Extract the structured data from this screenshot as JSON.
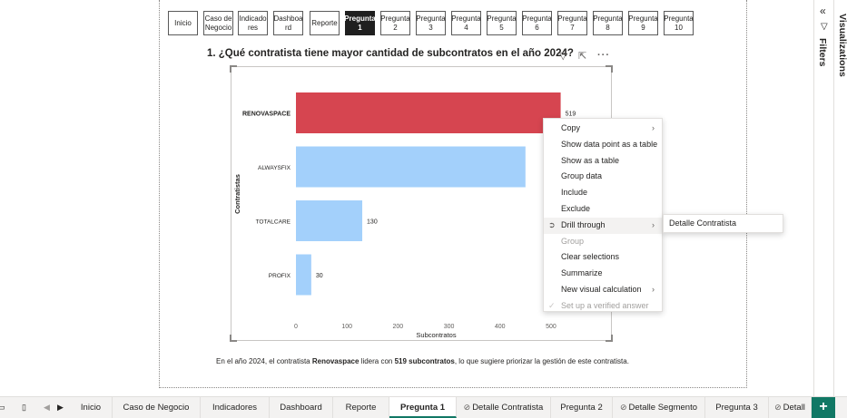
{
  "nav": {
    "buttons": [
      "Inicio",
      "Caso de Negocio",
      "Indicado res",
      "Dashboa rd",
      "Reporte",
      "Pregunta 1",
      "Pregunta 2",
      "Pregunta 3",
      "Pregunta 4",
      "Pregunta 5",
      "Pregunta 6",
      "Pregunta 7",
      "Pregunta 8",
      "Pregunta 9",
      "Pregunta 10"
    ],
    "active_index": 5
  },
  "visual": {
    "title": "1. ¿Qué contratista tiene mayor cantidad de subcontratos en el año 2024?",
    "icons": [
      "filter-icon",
      "focus-mode-icon",
      "more-options-icon"
    ]
  },
  "chart_data": {
    "type": "bar",
    "orientation": "horizontal",
    "categories": [
      "RENOVASPACE",
      "ALWAYSFIX",
      "TOTALCARE",
      "PROFIX"
    ],
    "values": [
      519,
      450,
      130,
      30
    ],
    "data_labels": [
      "519",
      "",
      "130",
      "30"
    ],
    "colors": [
      "#d64550",
      "#a3d0fb",
      "#a3d0fb",
      "#a3d0fb"
    ],
    "xlabel": "Subcontratos",
    "ylabel": "Contratistas",
    "xlim": [
      0,
      550
    ],
    "xticks": [
      0,
      100,
      200,
      300,
      400,
      500
    ],
    "grid": false
  },
  "caption": {
    "before": "En el año 2024, el contratista ",
    "bold1": "Renovaspace",
    "middle": " lidera con ",
    "bold2": "519 subcontratos",
    "after": ", lo que sugiere priorizar la gestión de este contratista."
  },
  "context_menu": {
    "items": [
      {
        "label": "Copy",
        "submenu": true,
        "disabled": false
      },
      {
        "label": "Show data point as a table",
        "submenu": false,
        "disabled": false
      },
      {
        "label": "Show as a table",
        "submenu": false,
        "disabled": false
      },
      {
        "label": "Group data",
        "submenu": false,
        "disabled": false
      },
      {
        "label": "Include",
        "submenu": false,
        "disabled": false
      },
      {
        "label": "Exclude",
        "submenu": false,
        "disabled": false
      },
      {
        "label": "Drill through",
        "submenu": true,
        "disabled": false,
        "highlighted": true
      },
      {
        "label": "Group",
        "submenu": false,
        "disabled": true
      },
      {
        "label": "Clear selections",
        "submenu": false,
        "disabled": false
      },
      {
        "label": "Summarize",
        "submenu": false,
        "disabled": false
      },
      {
        "label": "New visual calculation",
        "submenu": true,
        "disabled": false
      },
      {
        "label": "Set up a verified answer",
        "submenu": false,
        "disabled": true
      }
    ],
    "submenu_item": "Detalle Contratista"
  },
  "right_pane": {
    "filters_label": "Filters",
    "visualizations_label": "Visualizations"
  },
  "tabs": [
    {
      "label": "Inicio",
      "hidden": false
    },
    {
      "label": "Caso de Negocio",
      "hidden": false
    },
    {
      "label": "Indicadores",
      "hidden": false
    },
    {
      "label": "Dashboard",
      "hidden": false
    },
    {
      "label": "Reporte",
      "hidden": false
    },
    {
      "label": "Pregunta 1",
      "hidden": false,
      "active": true
    },
    {
      "label": "Detalle Contratista",
      "hidden": true
    },
    {
      "label": "Pregunta 2",
      "hidden": false
    },
    {
      "label": "Detalle Segmento",
      "hidden": true
    },
    {
      "label": "Pregunta 3",
      "hidden": false
    },
    {
      "label": "Detall",
      "hidden": true
    }
  ],
  "add_page_label": "+"
}
